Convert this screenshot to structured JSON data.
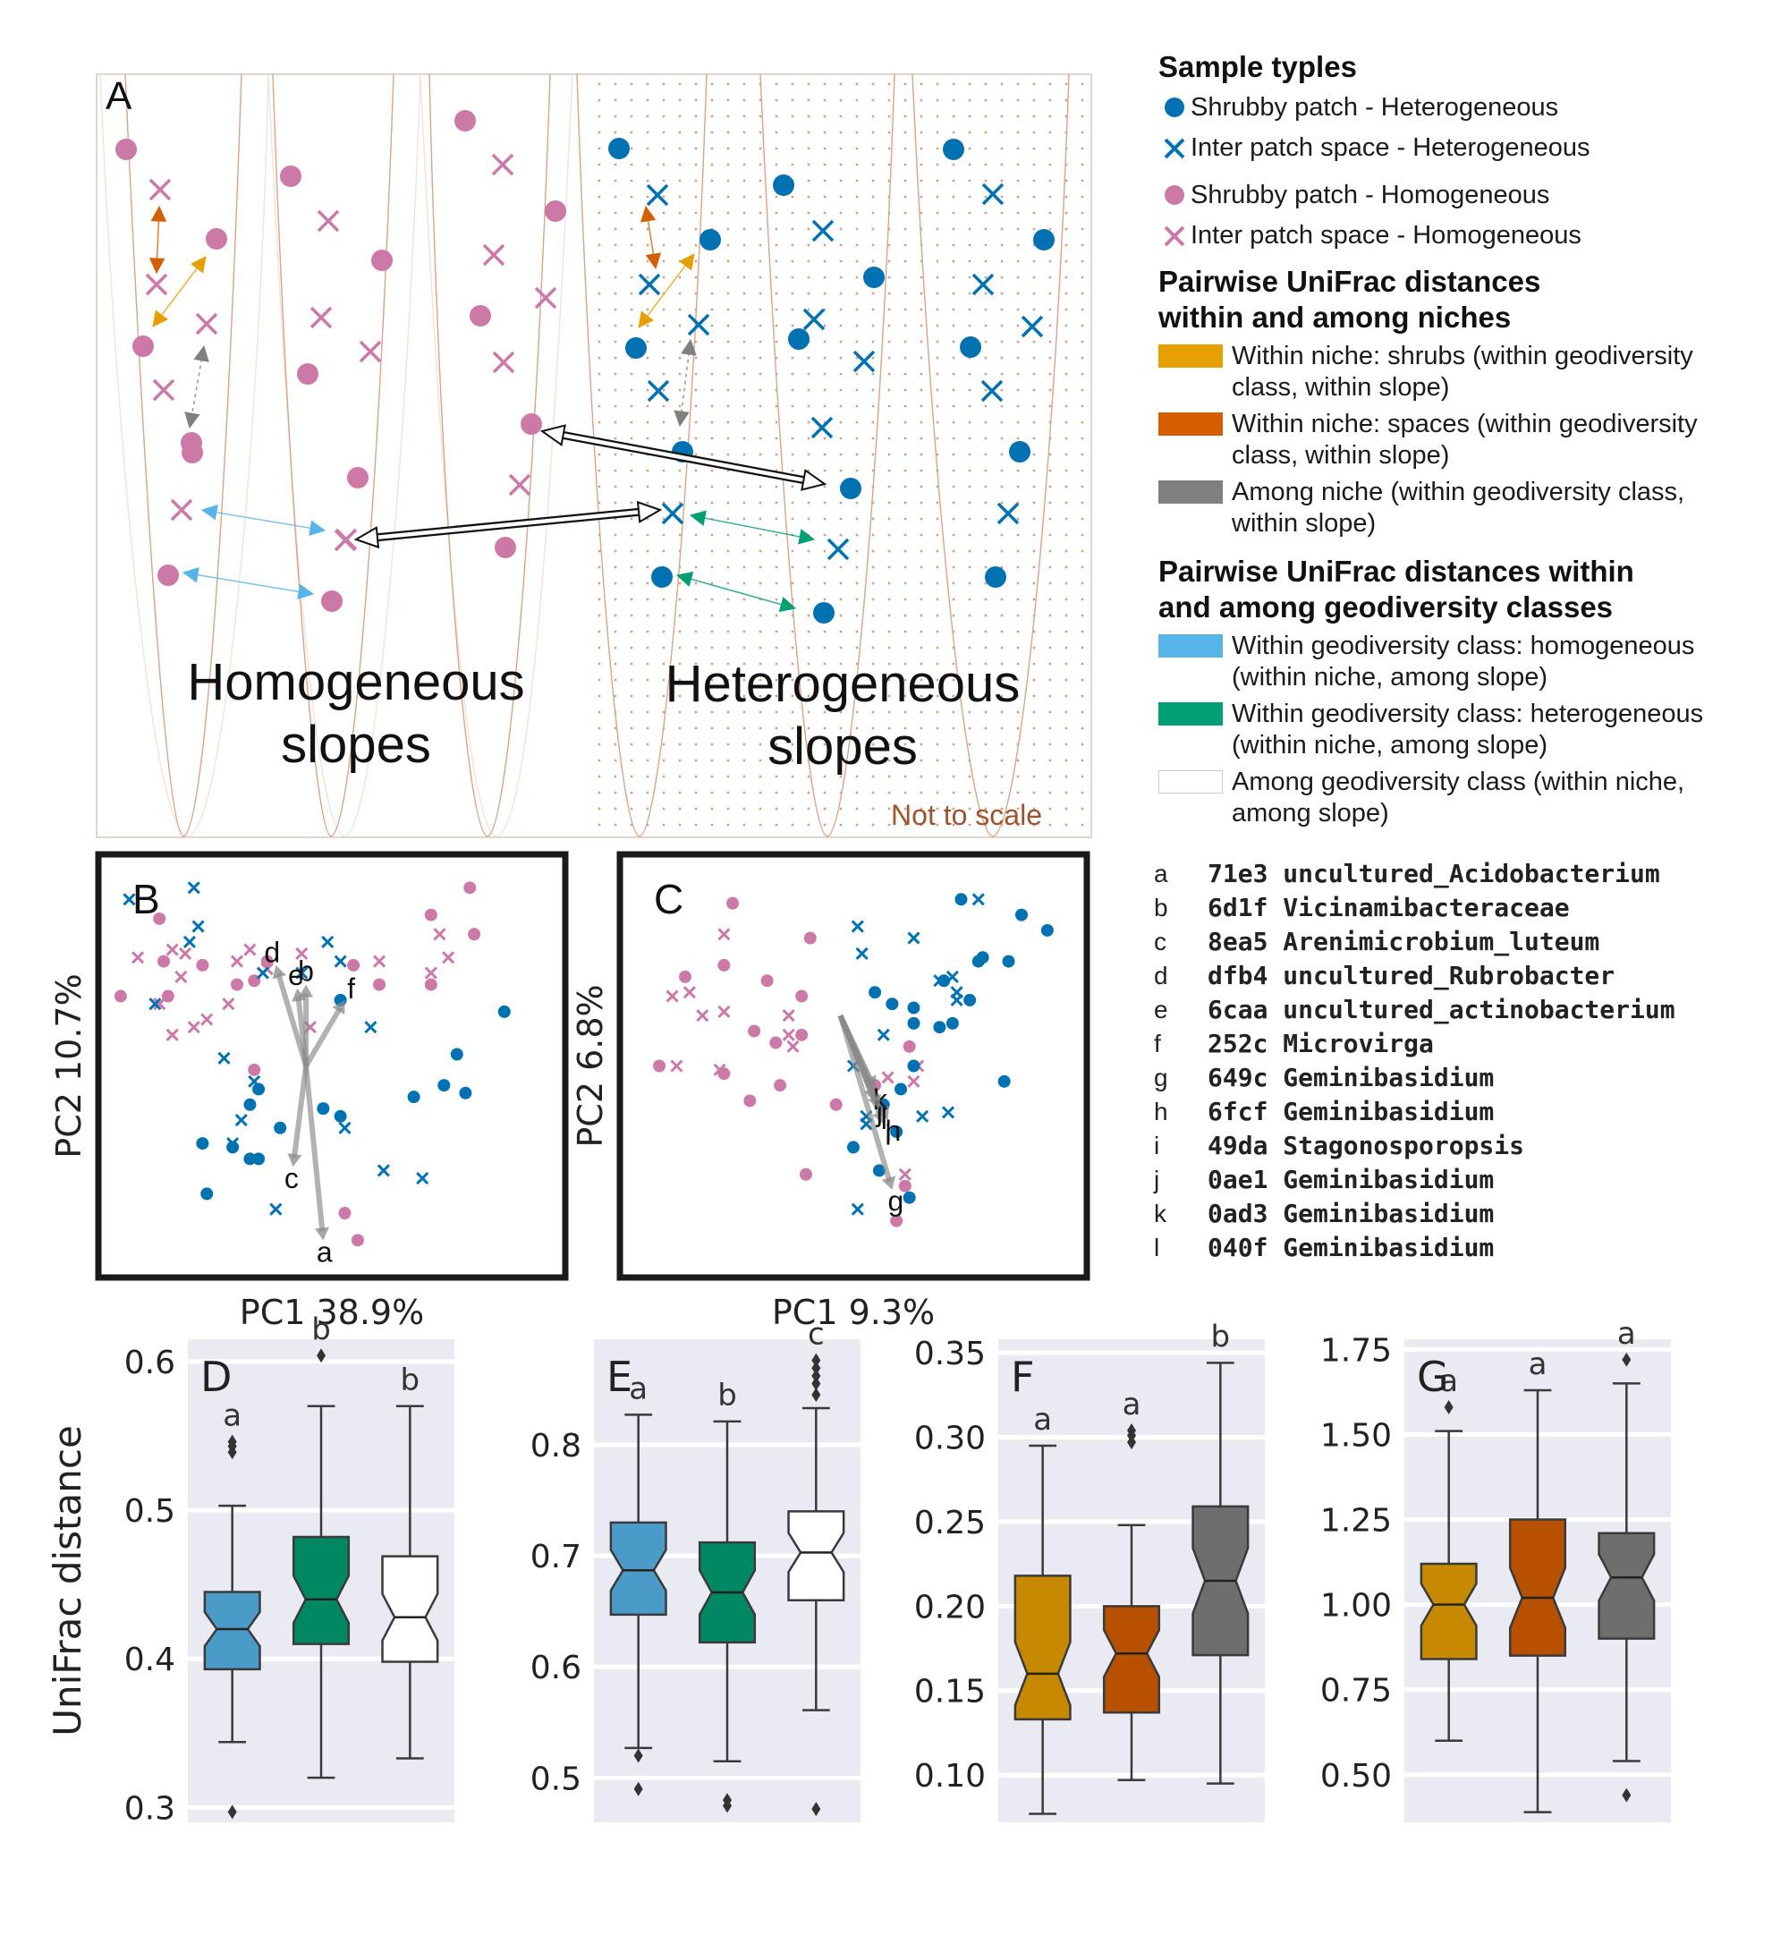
{
  "colors": {
    "shrub_homo": "#cc79a7",
    "shrub_hetero": "#0072b2",
    "within_shrubs": "#e69f00",
    "within_spaces": "#d55e00",
    "among_niche": "#808080",
    "within_homo": "#56b4e9",
    "within_hetero": "#009e73",
    "among_class": "#ffffff",
    "panel_bg": "#eaeaf2"
  },
  "panelA": {
    "label": "A",
    "homogeneous_label": [
      "Homogeneous",
      "slopes"
    ],
    "heterogeneous_label": [
      "Heterogeneous",
      "slopes"
    ],
    "scale_note": "Not to scale"
  },
  "legend": {
    "title_samples": "Sample typles",
    "samples": [
      {
        "label": "Shrubby patch - Heterogeneous",
        "marker": "circle",
        "color": "#0072b2"
      },
      {
        "label": "Inter patch space - Heterogeneous",
        "marker": "cross",
        "color": "#0072b2"
      },
      {
        "label": "Shrubby patch - Homogeneous",
        "marker": "circle",
        "color": "#cc79a7"
      },
      {
        "label": "Inter patch space - Homogeneous",
        "marker": "cross",
        "color": "#cc79a7"
      }
    ],
    "title_niches": [
      "Pairwise UniFrac distances",
      "within and among niches"
    ],
    "niches": [
      {
        "label": [
          "Within niche: shrubs (within geodiversity",
          "class, within slope)"
        ],
        "color": "#e69f00"
      },
      {
        "label": [
          "Within niche: spaces (within geodiversity",
          "class, within slope)"
        ],
        "color": "#d55e00"
      },
      {
        "label": [
          "Among niche (within geodiversity class,",
          "within slope)"
        ],
        "color": "#808080"
      }
    ],
    "title_classes": [
      "Pairwise UniFrac distances  within",
      "and among geodiversity classes"
    ],
    "classes": [
      {
        "label": [
          "Within geodiversity class: homogeneous",
          "(within niche, among slope)"
        ],
        "color": "#56b4e9"
      },
      {
        "label": [
          "Within geodiversity class: heterogeneous",
          "(within niche, among slope)"
        ],
        "color": "#009e73"
      },
      {
        "label": [
          "Among geodiversity class (within niche,",
          "among slope)"
        ],
        "color": "#ffffff"
      }
    ]
  },
  "taxa": [
    {
      "letter": "a",
      "name": "71e3 uncultured_Acidobacterium"
    },
    {
      "letter": "b",
      "name": "6d1f Vicinamibacteraceae"
    },
    {
      "letter": "c",
      "name": "8ea5 Arenimicrobium_luteum"
    },
    {
      "letter": "d",
      "name": "dfb4 uncultured_Rubrobacter"
    },
    {
      "letter": "e",
      "name": "6caa uncultured_actinobacterium"
    },
    {
      "letter": "f",
      "name": "252c Microvirga"
    },
    {
      "letter": "g",
      "name": "649c Geminibasidium"
    },
    {
      "letter": "h",
      "name": "6fcf Geminibasidium"
    },
    {
      "letter": "i",
      "name": "49da Stagonosporopsis"
    },
    {
      "letter": "j",
      "name": "0ae1 Geminibasidium"
    },
    {
      "letter": "k",
      "name": "0ad3 Geminibasidium"
    },
    {
      "letter": "l",
      "name": "040f Geminibasidium"
    }
  ],
  "chart_data": [
    {
      "panel": "B",
      "type": "scatter",
      "xlabel": "PC1 38.9%",
      "ylabel": "PC2 10.7%",
      "xlim": [
        0,
        100
      ],
      "ylim": [
        0,
        100
      ],
      "series": [
        {
          "marker": "circle",
          "color": "#cc79a7",
          "points": [
            [
              82,
              96
            ],
            [
              73,
              89
            ],
            [
              83,
              84
            ],
            [
              10,
              88
            ],
            [
              11,
              77
            ],
            [
              20,
              76
            ],
            [
              35,
              77
            ],
            [
              55,
              76
            ],
            [
              73,
              71
            ],
            [
              28,
              71
            ],
            [
              1,
              68
            ],
            [
              12,
              68
            ],
            [
              32,
              72
            ],
            [
              61,
              71
            ],
            [
              32,
              49
            ],
            [
              53,
              12
            ],
            [
              56,
              5
            ]
          ]
        },
        {
          "marker": "cross",
          "color": "#cc79a7",
          "points": [
            [
              35,
              75
            ],
            [
              5,
              78
            ],
            [
              13,
              80
            ],
            [
              16,
              79
            ],
            [
              28,
              77
            ],
            [
              31,
              80
            ],
            [
              43,
              79
            ],
            [
              61,
              77
            ],
            [
              73,
              74
            ],
            [
              75,
              84
            ],
            [
              15,
              73
            ],
            [
              10,
              66
            ],
            [
              77,
              78
            ],
            [
              18,
              60
            ],
            [
              13,
              58
            ],
            [
              21,
              62
            ],
            [
              26,
              66
            ],
            [
              45,
              60
            ]
          ]
        },
        {
          "marker": "circle",
          "color": "#0072b2",
          "points": [
            [
              52,
              67
            ],
            [
              79,
              53
            ],
            [
              81,
              43
            ],
            [
              69,
              42
            ],
            [
              33,
              44
            ],
            [
              31,
              40
            ],
            [
              48,
              39
            ],
            [
              52,
              37
            ],
            [
              38,
              34
            ],
            [
              21,
              17
            ],
            [
              31,
              26
            ],
            [
              33,
              26
            ],
            [
              20,
              30
            ],
            [
              27,
              29
            ],
            [
              76,
              45
            ],
            [
              90,
              64
            ]
          ]
        },
        {
          "marker": "cross",
          "color": "#0072b2",
          "points": [
            [
              32,
              46
            ],
            [
              3,
              93
            ],
            [
              18,
              96
            ],
            [
              19,
              86
            ],
            [
              9,
              66
            ],
            [
              17,
              82
            ],
            [
              34,
              74
            ],
            [
              43,
              74
            ],
            [
              49,
              82
            ],
            [
              52,
              77
            ],
            [
              59,
              60
            ],
            [
              53,
              34
            ],
            [
              71,
              21
            ],
            [
              62,
              23
            ],
            [
              25,
              52
            ],
            [
              27,
              30
            ],
            [
              29,
              36
            ],
            [
              37,
              13
            ]
          ]
        }
      ],
      "arrows": [
        {
          "label": "a",
          "end": [
            48,
            5
          ]
        },
        {
          "label": "b",
          "end": [
            44,
            71
          ]
        },
        {
          "label": "c",
          "end": [
            41,
            24
          ]
        },
        {
          "label": "d",
          "end": [
            37,
            76
          ]
        },
        {
          "label": "e",
          "end": [
            42,
            70
          ]
        },
        {
          "label": "f",
          "end": [
            53,
            67
          ]
        }
      ],
      "arrow_origin": [
        44,
        50
      ]
    },
    {
      "panel": "C",
      "type": "scatter",
      "xlabel": "PC1 9.3%",
      "ylabel": "PC2 6.8%",
      "xlim": [
        0,
        100
      ],
      "ylim": [
        0,
        100
      ],
      "series": [
        {
          "marker": "circle",
          "color": "#cc79a7",
          "points": [
            [
              22,
              92
            ],
            [
              40,
              83
            ],
            [
              20,
              76
            ],
            [
              11,
              73
            ],
            [
              30,
              72
            ],
            [
              38,
              68
            ],
            [
              20,
              48
            ],
            [
              5,
              50
            ],
            [
              27,
              59
            ],
            [
              32,
              56
            ],
            [
              38,
              58
            ],
            [
              26,
              41
            ],
            [
              33,
              45
            ],
            [
              55,
              45
            ],
            [
              63,
              55
            ],
            [
              39,
              22
            ],
            [
              60,
              10
            ],
            [
              62,
              19
            ],
            [
              46,
              40
            ]
          ]
        },
        {
          "marker": "cross",
          "color": "#cc79a7",
          "points": [
            [
              20,
              84
            ],
            [
              12,
              69
            ],
            [
              8,
              68
            ],
            [
              15,
              63
            ],
            [
              20,
              64
            ],
            [
              35,
              63
            ],
            [
              35,
              58
            ],
            [
              9,
              50
            ],
            [
              19,
              49
            ],
            [
              58,
              47
            ],
            [
              65,
              50
            ],
            [
              62,
              22
            ],
            [
              36,
              55
            ],
            [
              64,
              46
            ]
          ]
        },
        {
          "marker": "circle",
          "color": "#0072b2",
          "points": [
            [
              75,
              93
            ],
            [
              89,
              89
            ],
            [
              86,
              77
            ],
            [
              79,
              77
            ],
            [
              80,
              78
            ],
            [
              71,
              72
            ],
            [
              55,
              69
            ],
            [
              64,
              65
            ],
            [
              64,
              61
            ],
            [
              73,
              61
            ],
            [
              64,
              50
            ],
            [
              70,
              60
            ],
            [
              61,
              44
            ],
            [
              57,
              40
            ],
            [
              50,
              29
            ],
            [
              60,
              33
            ],
            [
              56,
              23
            ],
            [
              95,
              85
            ],
            [
              59,
              66
            ],
            [
              77,
              67
            ],
            [
              85,
              46
            ],
            [
              63,
              16
            ]
          ]
        },
        {
          "marker": "cross",
          "color": "#0072b2",
          "points": [
            [
              79,
              93
            ],
            [
              64,
              83
            ],
            [
              51,
              86
            ],
            [
              70,
              72
            ],
            [
              73,
              73
            ],
            [
              74,
              67
            ],
            [
              52,
              79
            ],
            [
              50,
              50
            ],
            [
              53,
              37
            ],
            [
              53,
              35
            ],
            [
              72,
              38
            ],
            [
              66,
              37
            ],
            [
              51,
              13
            ],
            [
              74,
              69
            ],
            [
              57,
              58
            ]
          ]
        }
      ],
      "arrows": [
        {
          "label": "g",
          "end": [
            59,
            18
          ]
        },
        {
          "label": "h",
          "end": [
            58,
            36
          ]
        },
        {
          "label": "i",
          "end": [
            57,
            35
          ]
        },
        {
          "label": "j",
          "end": [
            55,
            41
          ]
        },
        {
          "label": "k",
          "end": [
            55,
            44
          ]
        },
        {
          "label": "l",
          "end": [
            56,
            39
          ]
        }
      ],
      "arrow_origin": [
        47,
        63
      ]
    },
    {
      "panel": "D",
      "type": "box",
      "ylabel": "UniFrac distance",
      "ylim": [
        0.29,
        0.615
      ],
      "yticks": [
        0.3,
        0.4,
        0.5,
        0.6
      ],
      "boxes": [
        {
          "color": "#56b4e9",
          "q1": 0.393,
          "median": 0.42,
          "q3": 0.445,
          "whislo": 0.344,
          "whishi": 0.503,
          "fliers": [
            0.297,
            0.539,
            0.543,
            0.546
          ],
          "sig": "a"
        },
        {
          "color": "#009e73",
          "q1": 0.41,
          "median": 0.44,
          "q3": 0.482,
          "whislo": 0.32,
          "whishi": 0.57,
          "fliers": [
            0.604
          ],
          "sig": "b"
        },
        {
          "color": "#ffffff",
          "q1": 0.398,
          "median": 0.428,
          "q3": 0.469,
          "whislo": 0.333,
          "whishi": 0.57,
          "fliers": [],
          "sig": "b"
        }
      ]
    },
    {
      "panel": "E",
      "type": "box",
      "ylim": [
        0.46,
        0.895
      ],
      "yticks": [
        0.5,
        0.6,
        0.7,
        0.8
      ],
      "boxes": [
        {
          "color": "#56b4e9",
          "q1": 0.647,
          "median": 0.687,
          "q3": 0.73,
          "whislo": 0.527,
          "whishi": 0.827,
          "fliers": [
            0.52,
            0.49
          ],
          "sig": "a"
        },
        {
          "color": "#009e73",
          "q1": 0.622,
          "median": 0.667,
          "q3": 0.712,
          "whislo": 0.515,
          "whishi": 0.821,
          "fliers": [
            0.475,
            0.48
          ],
          "sig": "b"
        },
        {
          "color": "#ffffff",
          "q1": 0.66,
          "median": 0.703,
          "q3": 0.74,
          "whislo": 0.561,
          "whishi": 0.833,
          "fliers": [
            0.472,
            0.845,
            0.855,
            0.862,
            0.869,
            0.876
          ],
          "sig": "c"
        }
      ]
    },
    {
      "panel": "F",
      "type": "box",
      "ylim": [
        0.072,
        0.358
      ],
      "yticks": [
        0.1,
        0.15,
        0.2,
        0.25,
        0.3,
        0.35
      ],
      "boxes": [
        {
          "color": "#e69f00",
          "q1": 0.133,
          "median": 0.16,
          "q3": 0.218,
          "whislo": 0.077,
          "whishi": 0.295,
          "fliers": [],
          "sig": "a"
        },
        {
          "color": "#d55e00",
          "q1": 0.137,
          "median": 0.172,
          "q3": 0.2,
          "whislo": 0.097,
          "whishi": 0.248,
          "fliers": [
            0.297,
            0.301,
            0.304
          ],
          "sig": "a"
        },
        {
          "color": "#808080",
          "q1": 0.171,
          "median": 0.215,
          "q3": 0.259,
          "whislo": 0.095,
          "whishi": 0.344,
          "fliers": [],
          "sig": "b"
        }
      ]
    },
    {
      "panel": "G",
      "type": "box",
      "ylim": [
        0.36,
        1.78
      ],
      "yticks": [
        0.5,
        0.75,
        1.0,
        1.25,
        1.5,
        1.75
      ],
      "boxes": [
        {
          "color": "#e69f00",
          "q1": 0.84,
          "median": 1.0,
          "q3": 1.12,
          "whislo": 0.6,
          "whishi": 1.51,
          "fliers": [
            1.58
          ],
          "sig": "a"
        },
        {
          "color": "#d55e00",
          "q1": 0.85,
          "median": 1.02,
          "q3": 1.25,
          "whislo": 0.39,
          "whishi": 1.63,
          "fliers": [],
          "sig": "a"
        },
        {
          "color": "#808080",
          "q1": 0.9,
          "median": 1.08,
          "q3": 1.21,
          "whislo": 0.54,
          "whishi": 1.65,
          "fliers": [
            0.44,
            1.72
          ],
          "sig": "a"
        }
      ]
    }
  ]
}
